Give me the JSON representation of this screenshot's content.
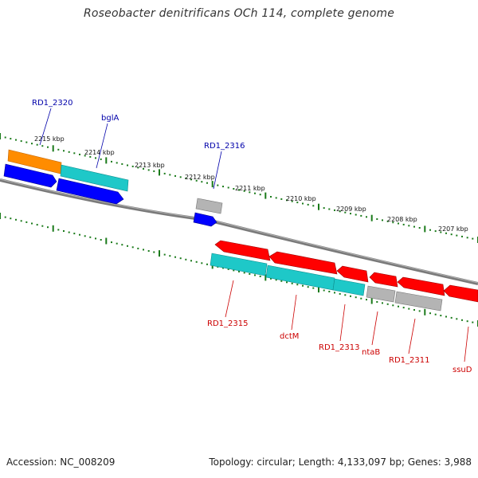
{
  "title": "Roseobacter denitrificans OCh 114, complete genome",
  "footer": {
    "accession": "Accession: NC_008209",
    "summary": "Topology: circular; Length: 4,133,097 bp; Genes: 3,988"
  },
  "scale_labels": [
    "2215 kbp",
    "2214 kbp",
    "2213 kbp",
    "2212 kbp",
    "2211 kbp",
    "2210 kbp",
    "2209 kbp",
    "2208 kbp",
    "2207 kbp"
  ],
  "gene_labels_top": [
    "RD1_2320",
    "bglA",
    "RD1_2316"
  ],
  "gene_labels_bottom": [
    "RD1_2315",
    "dctM",
    "RD1_2313",
    "ntaB",
    "RD1_2311",
    "ssuD"
  ],
  "colors": {
    "forward_gene": "#ff0000",
    "reverse_gene": "#0000ff",
    "cds_teal": "#1ec8c8",
    "cds_orange": "#ff8c00",
    "cds_gray": "#b4b4b4",
    "backbone": "#808080",
    "ticks": "#1a7a1a",
    "label_top": "#0000aa",
    "label_bottom": "#cc0000"
  }
}
